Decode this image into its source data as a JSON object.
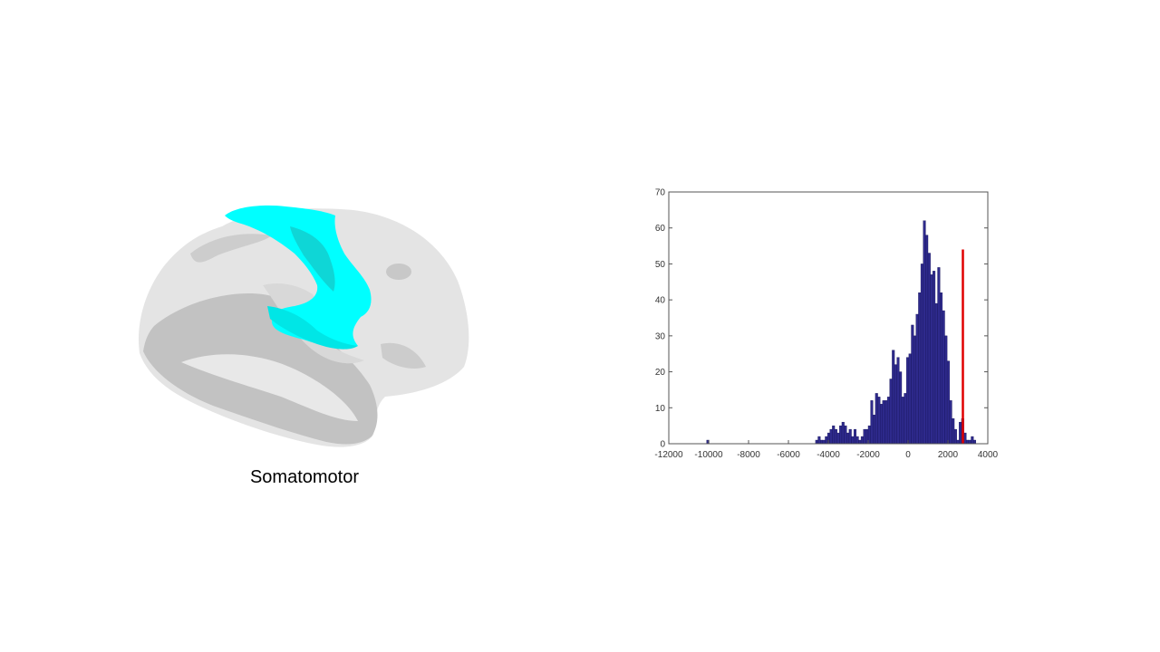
{
  "colors": {
    "brain_surface": "#e4e4e4",
    "brain_shadow": "#c2c2c2",
    "highlight": "#00ffff",
    "highlight_dark": "#0fd6d6",
    "bar_fill": "#2e2a8c",
    "bar_edge": "#16135c",
    "threshold_line": "#e00000"
  },
  "brain_panel": {
    "caption": "Somatomotor",
    "highlight_icon": "cyan-region"
  },
  "chart_data": {
    "type": "bar",
    "xlim": [
      -12000,
      4000
    ],
    "ylim": [
      0,
      70
    ],
    "x_ticks": [
      -12000,
      -10000,
      -8000,
      -6000,
      -4000,
      -2000,
      0,
      2000,
      4000
    ],
    "y_ticks": [
      0,
      10,
      20,
      30,
      40,
      50,
      60,
      70
    ],
    "grid": false,
    "bin_width": 120,
    "bins": [
      [
        -10040,
        1
      ],
      [
        -4580,
        1
      ],
      [
        -4460,
        2
      ],
      [
        -4340,
        1
      ],
      [
        -4220,
        1
      ],
      [
        -4100,
        2
      ],
      [
        -3980,
        3
      ],
      [
        -3860,
        4
      ],
      [
        -3740,
        5
      ],
      [
        -3620,
        4
      ],
      [
        -3500,
        3
      ],
      [
        -3380,
        5
      ],
      [
        -3260,
        6
      ],
      [
        -3140,
        5
      ],
      [
        -3020,
        3
      ],
      [
        -2900,
        4
      ],
      [
        -2780,
        2
      ],
      [
        -2660,
        4
      ],
      [
        -2540,
        2
      ],
      [
        -2420,
        1
      ],
      [
        -2300,
        2
      ],
      [
        -2180,
        4
      ],
      [
        -2060,
        4
      ],
      [
        -1940,
        5
      ],
      [
        -1820,
        12
      ],
      [
        -1700,
        8
      ],
      [
        -1580,
        14
      ],
      [
        -1460,
        13
      ],
      [
        -1340,
        11
      ],
      [
        -1220,
        12
      ],
      [
        -1100,
        12
      ],
      [
        -980,
        13
      ],
      [
        -860,
        18
      ],
      [
        -740,
        26
      ],
      [
        -620,
        22
      ],
      [
        -500,
        24
      ],
      [
        -380,
        20
      ],
      [
        -260,
        13
      ],
      [
        -140,
        14
      ],
      [
        -20,
        24
      ],
      [
        100,
        25
      ],
      [
        220,
        33
      ],
      [
        340,
        30
      ],
      [
        460,
        36
      ],
      [
        580,
        42
      ],
      [
        700,
        50
      ],
      [
        820,
        62
      ],
      [
        940,
        58
      ],
      [
        1060,
        53
      ],
      [
        1180,
        47
      ],
      [
        1300,
        48
      ],
      [
        1420,
        39
      ],
      [
        1540,
        49
      ],
      [
        1660,
        42
      ],
      [
        1780,
        37
      ],
      [
        1900,
        30
      ],
      [
        2020,
        23
      ],
      [
        2140,
        12
      ],
      [
        2260,
        7
      ],
      [
        2380,
        4
      ],
      [
        2500,
        1
      ],
      [
        2620,
        6
      ],
      [
        2740,
        7
      ],
      [
        2860,
        3
      ],
      [
        2980,
        1
      ],
      [
        3100,
        1
      ],
      [
        3220,
        2
      ],
      [
        3340,
        1
      ]
    ],
    "threshold": {
      "x": 2750,
      "y": 54
    }
  }
}
